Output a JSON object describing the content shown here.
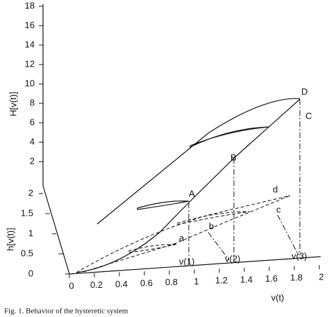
{
  "figure": {
    "H_axis": {
      "label": "H[v(t)]",
      "ticks": [
        "2",
        "4",
        "6",
        "8",
        "10",
        "12",
        "14",
        "16",
        "18"
      ]
    },
    "h_axis": {
      "label": "h[v(t)]",
      "ticks": [
        "0",
        "0.5",
        "1",
        "1.5",
        "2"
      ]
    },
    "v_axis": {
      "label": "v(t)",
      "ticks": [
        "0",
        "0.2",
        "0.4",
        "0.6",
        "0.8",
        "1",
        "1.2",
        "1.4",
        "1.6",
        "1.8",
        "2"
      ]
    },
    "points": [
      "A",
      "B",
      "C",
      "D",
      "a",
      "b",
      "c",
      "d",
      "v(1)",
      "v(2)",
      "v(3)"
    ],
    "caption": "Fig. 1.  Behavior of the hysteretic system"
  }
}
